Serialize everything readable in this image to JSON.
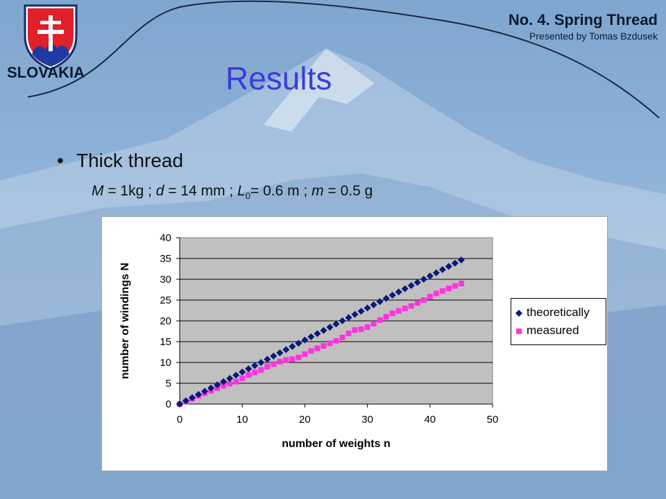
{
  "header": {
    "title": "No. 4. Spring Thread",
    "subtitle": "Presented by Tomas Bzdusek"
  },
  "logo": {
    "country": "SLOVAKIA"
  },
  "slide": {
    "title": "Results",
    "bullet": "Thick thread",
    "params": {
      "M_label": "M",
      "M_value": " = 1kg ; ",
      "d_label": "d",
      "d_value": " = 14 mm ; ",
      "L_label": "L",
      "L_sub": "0",
      "L_value": "= 0.6 m ; ",
      "m_label": "m",
      "m_value": " = 0.5 g"
    }
  },
  "colors": {
    "theoretical": "#0a1a7a",
    "measured": "#ff33dd",
    "plot_bg": "#c0c0c0",
    "title": "#3c3cd8"
  },
  "chart_data": {
    "type": "scatter",
    "xlabel": "number of weights n",
    "ylabel": "number of windings N",
    "xlim": [
      0,
      50
    ],
    "ylim": [
      0,
      40
    ],
    "xticks": [
      0,
      10,
      20,
      30,
      40,
      50
    ],
    "yticks": [
      0,
      5,
      10,
      15,
      20,
      25,
      30,
      35,
      40
    ],
    "grid": "horizontal",
    "legend": "right",
    "series": [
      {
        "name": "theoretically",
        "marker": "diamond",
        "x": [
          0,
          1,
          2,
          3,
          4,
          5,
          6,
          7,
          8,
          9,
          10,
          11,
          12,
          13,
          14,
          15,
          16,
          17,
          18,
          19,
          20,
          21,
          22,
          23,
          24,
          25,
          26,
          27,
          28,
          29,
          30,
          31,
          32,
          33,
          34,
          35,
          36,
          37,
          38,
          39,
          40,
          41,
          42,
          43,
          44,
          45
        ],
        "y": [
          0,
          0.77,
          1.54,
          2.31,
          3.08,
          3.85,
          4.62,
          5.39,
          6.16,
          6.93,
          7.7,
          8.47,
          9.24,
          10.01,
          10.78,
          11.55,
          12.32,
          13.09,
          13.86,
          14.63,
          15.4,
          16.17,
          16.94,
          17.71,
          18.48,
          19.25,
          20.02,
          20.79,
          21.56,
          22.33,
          23.1,
          23.87,
          24.64,
          25.41,
          26.18,
          26.95,
          27.72,
          28.49,
          29.26,
          30.03,
          30.8,
          31.57,
          32.34,
          33.11,
          33.88,
          34.65
        ]
      },
      {
        "name": "measured",
        "marker": "square",
        "x": [
          0,
          1,
          2,
          3,
          4,
          5,
          6,
          7,
          8,
          9,
          10,
          11,
          12,
          13,
          14,
          15,
          16,
          17,
          18,
          19,
          20,
          21,
          22,
          23,
          24,
          25,
          26,
          27,
          28,
          29,
          30,
          31,
          32,
          33,
          34,
          35,
          36,
          37,
          38,
          39,
          40,
          41,
          42,
          43,
          44,
          45
        ],
        "y": [
          0,
          0.6,
          1.3,
          2.0,
          2.6,
          3.2,
          3.8,
          4.4,
          4.9,
          5.4,
          6.2,
          7.0,
          7.6,
          8.2,
          9.0,
          9.6,
          10.2,
          10.6,
          10.8,
          11.2,
          12.0,
          12.8,
          13.4,
          14.0,
          14.6,
          15.2,
          16.0,
          17.0,
          17.8,
          18.0,
          18.5,
          19.3,
          20.2,
          21.0,
          21.8,
          22.4,
          23.0,
          23.6,
          24.3,
          25.0,
          25.8,
          26.6,
          27.2,
          27.8,
          28.4,
          29.0
        ]
      }
    ]
  }
}
